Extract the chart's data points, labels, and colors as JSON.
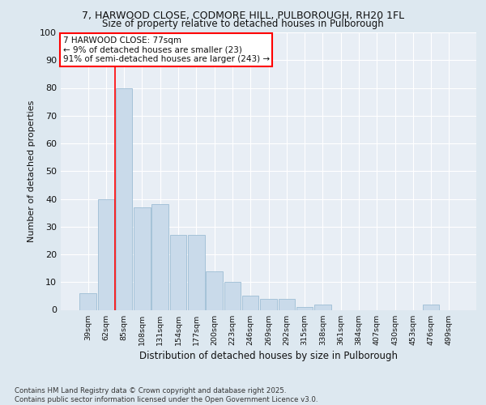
{
  "title_line1": "7, HARWOOD CLOSE, CODMORE HILL, PULBOROUGH, RH20 1FL",
  "title_line2": "Size of property relative to detached houses in Pulborough",
  "xlabel": "Distribution of detached houses by size in Pulborough",
  "ylabel": "Number of detached properties",
  "categories": [
    "39sqm",
    "62sqm",
    "85sqm",
    "108sqm",
    "131sqm",
    "154sqm",
    "177sqm",
    "200sqm",
    "223sqm",
    "246sqm",
    "269sqm",
    "292sqm",
    "315sqm",
    "338sqm",
    "361sqm",
    "384sqm",
    "407sqm",
    "430sqm",
    "453sqm",
    "476sqm",
    "499sqm"
  ],
  "values": [
    6,
    40,
    80,
    37,
    38,
    27,
    27,
    14,
    10,
    5,
    4,
    4,
    1,
    2,
    0,
    0,
    0,
    0,
    0,
    2,
    0
  ],
  "bar_color": "#c9daea",
  "bar_edge_color": "#9dbdd4",
  "annotation_line1": "7 HARWOOD CLOSE: 77sqm",
  "annotation_line2": "← 9% of detached houses are smaller (23)",
  "annotation_line3": "91% of semi-detached houses are larger (243) →",
  "vline_x": 1.5,
  "ylim": [
    0,
    100
  ],
  "yticks": [
    0,
    10,
    20,
    30,
    40,
    50,
    60,
    70,
    80,
    90,
    100
  ],
  "bg_color": "#dde8f0",
  "plot_bg_color": "#e8eef5",
  "grid_color": "#ffffff",
  "footer": "Contains HM Land Registry data © Crown copyright and database right 2025.\nContains public sector information licensed under the Open Government Licence v3.0."
}
